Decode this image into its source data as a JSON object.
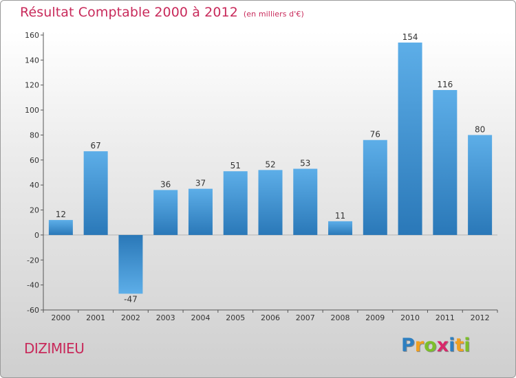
{
  "chart_data": {
    "type": "bar",
    "title": "Résultat Comptable 2000 à 2012",
    "subtitle": "(en milliers d'€)",
    "xlabel": "",
    "ylabel": "",
    "categories": [
      "2000",
      "2001",
      "2002",
      "2003",
      "2004",
      "2005",
      "2006",
      "2007",
      "2008",
      "2009",
      "2010",
      "2011",
      "2012"
    ],
    "values": [
      12,
      67,
      -47,
      36,
      37,
      51,
      52,
      53,
      11,
      76,
      154,
      116,
      80
    ],
    "ylim": [
      -60,
      160
    ],
    "yticks": [
      -60,
      -40,
      -20,
      0,
      20,
      40,
      60,
      80,
      100,
      120,
      140,
      160
    ],
    "grid": false,
    "legend": "none",
    "colors": {
      "bar_light": "#5daee8",
      "bar_dark": "#2a78b8",
      "title": "#c8295a"
    }
  },
  "footer": {
    "place": "DIZIMIEU"
  },
  "brand": {
    "letters": [
      "P",
      "r",
      "o",
      "x",
      "i",
      "t",
      "i"
    ],
    "colors": [
      "#2e7fc0",
      "#f0a020",
      "#7cbf2a",
      "#d8286a",
      "#2e7fc0",
      "#f0a020",
      "#7cbf2a"
    ]
  }
}
